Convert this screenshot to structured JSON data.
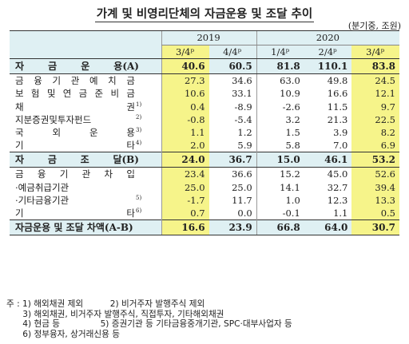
{
  "title": "가계 및 비영리단체의 자금운용 및 조달 추이",
  "unit": "(분기중, 조원)",
  "years": [
    "2019",
    "2020"
  ],
  "quarters": [
    "3/4ᵖ",
    "4/4ᵖ",
    "1/4ᵖ",
    "2/4ᵖ",
    "3/4ᵖ"
  ],
  "rows": [
    {
      "label": "자금운용(A)",
      "chars": [
        "자",
        "금",
        "운",
        "용(A)"
      ],
      "sup": "",
      "type": "main",
      "values": [
        "40.6",
        "60.5",
        "81.8",
        "110.1",
        "83.8"
      ]
    },
    {
      "label": "금융기관예치금",
      "chars": [
        "금",
        "융",
        "기",
        "관",
        "예",
        "치",
        "금"
      ],
      "sup": "",
      "type": "sub",
      "values": [
        "27.3",
        "34.6",
        "63.0",
        "49.8",
        "24.5"
      ]
    },
    {
      "label": "보험및연금준비금",
      "chars": [
        "보",
        "험",
        "및",
        "연",
        "금",
        "준",
        "비",
        "금"
      ],
      "sup": "",
      "type": "sub",
      "values": [
        "10.6",
        "33.1",
        "10.9",
        "16.6",
        "12.1"
      ]
    },
    {
      "label": "채권",
      "chars": [
        "채",
        "권"
      ],
      "sup": "1)",
      "type": "sub",
      "values": [
        "0.4",
        "-8.9",
        "-2.6",
        "11.5",
        "9.7"
      ]
    },
    {
      "label": "지분증권및투자펀드",
      "chars": [
        "지분증권및투자펀드"
      ],
      "sup": "2)",
      "type": "sub",
      "values": [
        "-0.8",
        "-5.4",
        "3.2",
        "21.3",
        "22.5"
      ]
    },
    {
      "label": "국외운용",
      "chars": [
        "국",
        "외",
        "운",
        "용"
      ],
      "sup": "3)",
      "type": "sub",
      "values": [
        "1.1",
        "1.2",
        "1.5",
        "3.9",
        "8.2"
      ]
    },
    {
      "label": "기타",
      "chars": [
        "기",
        "타"
      ],
      "sup": "4)",
      "type": "sub",
      "values": [
        "2.0",
        "5.9",
        "5.8",
        "7.0",
        "6.9"
      ]
    },
    {
      "label": "자금조달(B)",
      "chars": [
        "자",
        "금",
        "조",
        "달(B)"
      ],
      "sup": "",
      "type": "main",
      "values": [
        "24.0",
        "36.7",
        "15.0",
        "46.1",
        "53.2"
      ]
    },
    {
      "label": "금융기관차입",
      "chars": [
        "금",
        "융",
        "기",
        "관",
        "차",
        "입"
      ],
      "sup": "",
      "type": "sub",
      "values": [
        "23.4",
        "36.6",
        "15.2",
        "45.0",
        "52.6"
      ]
    },
    {
      "label": "·예금취급기관",
      "chars": [
        "·예금취급기관"
      ],
      "sup": "",
      "type": "sub",
      "values": [
        "25.0",
        "25.0",
        "14.1",
        "32.7",
        "39.4"
      ]
    },
    {
      "label": "·기타금융기관",
      "chars": [
        "·기타금융기관"
      ],
      "sup": "5)",
      "type": "sub",
      "values": [
        "-1.7",
        "11.7",
        "1.0",
        "12.3",
        "13.3"
      ]
    },
    {
      "label": "기타",
      "chars": [
        "기",
        "타"
      ],
      "sup": "6)",
      "type": "sub",
      "values": [
        "0.7",
        "0.0",
        "-0.1",
        "1.1",
        "0.5"
      ]
    },
    {
      "label": "자금운용 및 조달 차액(A-B)",
      "chars": [
        "자금운용 및 조달 차액(A-B)"
      ],
      "sup": "",
      "type": "main",
      "values": [
        "16.6",
        "23.9",
        "66.8",
        "64.0",
        "30.7"
      ]
    }
  ],
  "notes": [
    "주 : 1) 해외채권 제외          2) 비거주자 발행주식 제외",
    "      3) 해외채권, 비거주자 발행주식, 직접투자, 기타해외채권",
    "      4) 현금 등               5) 증권기관 등 기타금융중개기관, SPC·대부사업자 등",
    "      6) 정부융자, 상거래신용 등"
  ],
  "colors": {
    "header_bg": "#dff0f3",
    "highlight": "#f6f48a"
  }
}
